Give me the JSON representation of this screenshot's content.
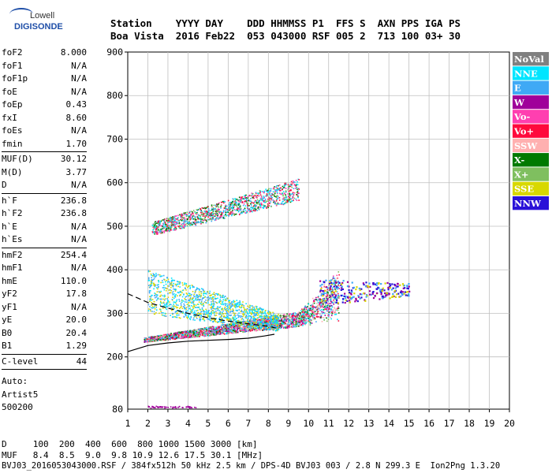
{
  "logo": {
    "line1": "Lowell",
    "line2": "DIGISONDE"
  },
  "header": {
    "labels": [
      "Station",
      "YYYY",
      "DAY",
      "DDD",
      "HHMMSS",
      "P1",
      "FFS",
      "S",
      "AXN",
      "PPS",
      "IGA",
      "PS"
    ],
    "values": [
      "Boa Vista",
      "2016",
      "Feb22",
      "053",
      "043000",
      "RSF",
      "005",
      "2",
      "713",
      "100",
      "03+",
      "30"
    ],
    "line1": "Station    YYYY DAY    DDD HHMMSS P1  FFS S  AXN PPS IGA PS",
    "line2": "Boa Vista  2016 Feb22  053 043000 RSF 005 2  713 100 03+ 30"
  },
  "params": {
    "group1": [
      {
        "name": "foF2",
        "value": "8.000"
      },
      {
        "name": "foF1",
        "value": "N/A"
      },
      {
        "name": "foF1p",
        "value": "N/A"
      },
      {
        "name": "foE",
        "value": "N/A"
      },
      {
        "name": "foEp",
        "value": "0.43"
      },
      {
        "name": "fxI",
        "value": "8.60"
      },
      {
        "name": "foEs",
        "value": "N/A"
      },
      {
        "name": "fmin",
        "value": "1.70"
      }
    ],
    "group2": [
      {
        "name": "MUF(D)",
        "value": "30.12"
      },
      {
        "name": "M(D)",
        "value": "3.77"
      },
      {
        "name": "D",
        "value": "N/A"
      }
    ],
    "group3": [
      {
        "name": "h`F",
        "value": "236.8"
      },
      {
        "name": "h`F2",
        "value": "236.8"
      },
      {
        "name": "h`E",
        "value": "N/A"
      },
      {
        "name": "h`Es",
        "value": "N/A"
      }
    ],
    "group4": [
      {
        "name": "hmF2",
        "value": "254.4"
      },
      {
        "name": "hmF1",
        "value": "N/A"
      },
      {
        "name": "hmE",
        "value": "110.0"
      },
      {
        "name": "yF2",
        "value": "17.8"
      },
      {
        "name": "yF1",
        "value": "N/A"
      },
      {
        "name": "yE",
        "value": "20.0"
      },
      {
        "name": "B0",
        "value": "20.4"
      },
      {
        "name": "B1",
        "value": "1.29"
      }
    ],
    "group5": [
      {
        "name": "C-level",
        "value": "44"
      }
    ],
    "auto": [
      "Auto:",
      "Artist5",
      "500200"
    ]
  },
  "legend": [
    {
      "label": "NoVal",
      "color": "#808080",
      "text_color": "#ffffff"
    },
    {
      "label": "NNE",
      "color": "#00e5ff",
      "text_color": "#ffffff"
    },
    {
      "label": "E",
      "color": "#3fa9f5",
      "text_color": "#ffffff"
    },
    {
      "label": "W",
      "color": "#a0009a",
      "text_color": "#ffffff"
    },
    {
      "label": "Vo-",
      "color": "#ff3fb0",
      "text_color": "#ffffff"
    },
    {
      "label": "Vo+",
      "color": "#ff0a3c",
      "text_color": "#ffffff"
    },
    {
      "label": "SSW",
      "color": "#ffb0b0",
      "text_color": "#ffffff"
    },
    {
      "label": "X-",
      "color": "#007a00",
      "text_color": "#ffffff"
    },
    {
      "label": "X+",
      "color": "#7fbf5f",
      "text_color": "#ffffff"
    },
    {
      "label": "SSE",
      "color": "#d8d800",
      "text_color": "#ffffff"
    },
    {
      "label": "NNW",
      "color": "#2a12d8",
      "text_color": "#ffffff"
    }
  ],
  "footer": {
    "line1": "D     100  200  400  600  800 1000 1500 3000 [km]",
    "line2": "MUF   8.4  8.5  9.0  9.8 10.9 12.6 17.5 30.1 [MHz]",
    "line3": "BVJ03_2016053043000.RSF / 384fx512h 50 kHz 2.5 km / DPS-4D BVJ03 003 / 2.8 N 299.3 E  Ion2Png 1.3.20"
  },
  "chart_data": {
    "type": "scatter",
    "xlim": [
      1,
      20
    ],
    "ylim": [
      80,
      900
    ],
    "xticks": [
      1,
      2,
      3,
      4,
      5,
      6,
      7,
      8,
      9,
      10,
      11,
      12,
      13,
      14,
      15,
      16,
      17,
      18,
      19,
      20
    ],
    "yticks": [
      200,
      300,
      400,
      500,
      600,
      700,
      800,
      900
    ],
    "ytick_labels": [
      "200",
      "300",
      "400",
      "500",
      "600",
      "700",
      "800",
      "900"
    ],
    "y_bottom_label": "80",
    "grid": true,
    "legend_position": "right",
    "clusters": [
      {
        "name": "F-layer trace",
        "x_range": [
          1.8,
          11.5
        ],
        "y_start": [
          235,
          245
        ],
        "y_end": [
          280,
          320
        ],
        "series": [
          "X-",
          "Vo+",
          "Vo-",
          "E",
          "NNE",
          "W",
          "SSW",
          "X+"
        ]
      },
      {
        "name": "spread band",
        "x_range": [
          2.0,
          8.5
        ],
        "y_start": [
          300,
          400
        ],
        "y_end": [
          260,
          300
        ],
        "series": [
          "E",
          "NNE",
          "SSE"
        ]
      },
      {
        "name": "second hop",
        "x_range": [
          2.2,
          9.5
        ],
        "y_start": [
          480,
          510
        ],
        "y_end": [
          560,
          610
        ],
        "series": [
          "Vo+",
          "Vo-",
          "E",
          "NNE",
          "X-",
          "X+"
        ]
      },
      {
        "name": "high range scatter",
        "x_range": [
          10.5,
          15.0
        ],
        "y_start": [
          320,
          380
        ],
        "y_end": [
          340,
          370
        ],
        "series": [
          "NNW",
          "W",
          "E",
          "SSE"
        ]
      },
      {
        "name": "low range dots",
        "x_range": [
          1.9,
          4.4
        ],
        "y_start": [
          84,
          88
        ],
        "y_end": [
          84,
          88
        ],
        "series": [
          "W"
        ]
      }
    ],
    "model_curves": [
      {
        "name": "virtual height profile",
        "points": [
          [
            1.0,
            212
          ],
          [
            2.0,
            226
          ],
          [
            3.0,
            232
          ],
          [
            4.0,
            236
          ],
          [
            5.0,
            238
          ],
          [
            6.0,
            240
          ],
          [
            7.0,
            243
          ],
          [
            7.8,
            248
          ],
          [
            8.3,
            252
          ]
        ]
      },
      {
        "name": "MUF curve",
        "points": [
          [
            1.0,
            345
          ],
          [
            1.5,
            335
          ],
          [
            2.0,
            325
          ],
          [
            3.0,
            312
          ],
          [
            4.0,
            300
          ],
          [
            5.0,
            290
          ],
          [
            6.0,
            282
          ],
          [
            7.0,
            276
          ],
          [
            8.0,
            270
          ],
          [
            8.5,
            265
          ]
        ]
      }
    ]
  }
}
